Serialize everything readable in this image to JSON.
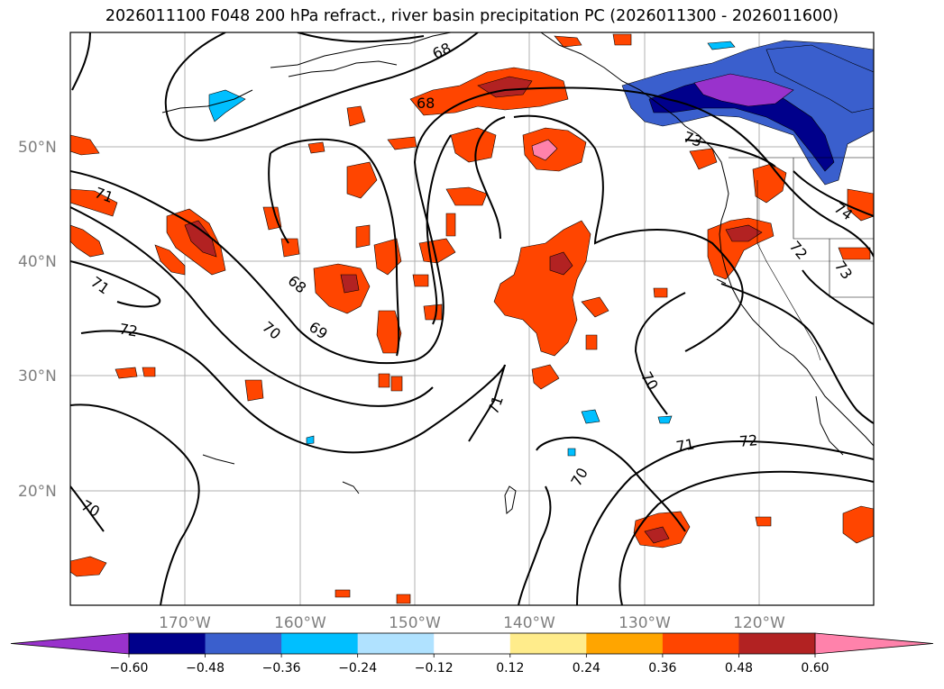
{
  "title": "2026011100 F048 200 hPa refract., river basin precipitation PC (2026011300 - 2026011600)",
  "map": {
    "lat_ticks": [
      "50°N",
      "40°N",
      "30°N",
      "20°N"
    ],
    "lon_ticks": [
      "170°W",
      "160°W",
      "150°W",
      "140°W",
      "130°W",
      "120°W"
    ],
    "grid": true,
    "extent": {
      "lon": [
        -180,
        -110
      ],
      "lat": [
        10,
        60
      ]
    }
  },
  "contour_labels": [
    "68",
    "68",
    "68",
    "69",
    "70",
    "70",
    "70",
    "70",
    "71",
    "71",
    "71",
    "71",
    "72",
    "72",
    "72",
    "73",
    "73",
    "74"
  ],
  "colorbar": {
    "ticks": [
      "−0.60",
      "−0.48",
      "−0.36",
      "−0.24",
      "−0.12",
      "0.12",
      "0.24",
      "0.36",
      "0.48",
      "0.60"
    ],
    "colors": [
      "#9932cc",
      "#00008b",
      "#3a5fcd",
      "#00bfff",
      "#b0e2ff",
      "#ffffff",
      "#ffec8b",
      "#ffa500",
      "#ff4500",
      "#b22222",
      "#ff82ab"
    ],
    "extend": "both"
  }
}
